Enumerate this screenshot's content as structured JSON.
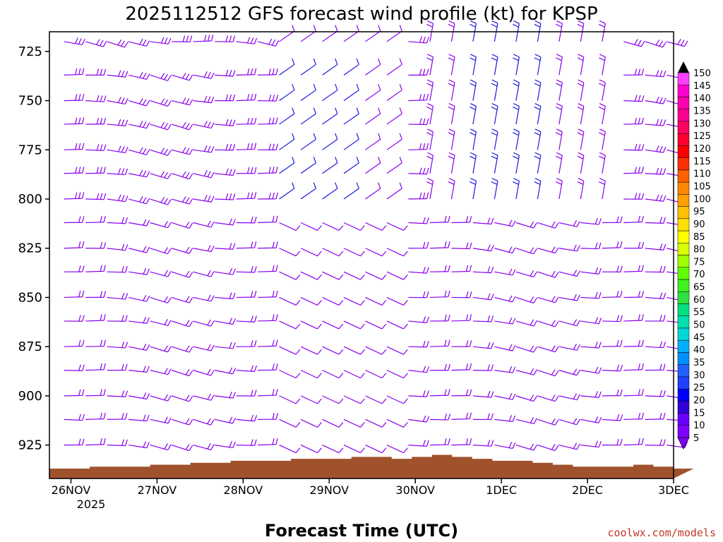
{
  "chart_data": {
    "type": "wind_profile",
    "title": "2025112512 GFS forecast wind profile (kt) for KPSP",
    "xlabel": "Forecast Time (UTC)",
    "credit": "coolwx.com/models",
    "y_axis": {
      "ticks": [
        "725",
        "750",
        "775",
        "800",
        "825",
        "850",
        "875",
        "900",
        "925"
      ],
      "tick_values": [
        725,
        750,
        775,
        800,
        825,
        850,
        875,
        900,
        925
      ],
      "range": [
        715,
        942
      ]
    },
    "x_axis": {
      "ticks": [
        "26NOV",
        "27NOV",
        "28NOV",
        "29NOV",
        "30NOV",
        "1DEC",
        "2DEC",
        "3DEC"
      ],
      "tick_days": [
        1,
        2,
        3,
        4,
        5,
        6,
        7,
        8
      ],
      "year_label": "2025",
      "range_days": [
        0.75,
        8.0
      ]
    },
    "levels_hpa": [
      720,
      737,
      750,
      762,
      775,
      787,
      800,
      812,
      825,
      837,
      850,
      862,
      875,
      887,
      900,
      912,
      925
    ],
    "surface_pressure_hpa": [
      937,
      937,
      936,
      936,
      936,
      935,
      935,
      934,
      934,
      933,
      933,
      933,
      932,
      932,
      932,
      931,
      931,
      932,
      931,
      930,
      931,
      932,
      933,
      933,
      934,
      935,
      936,
      936,
      936,
      935,
      936,
      937
    ],
    "colorbar": {
      "labels": [
        "5",
        "10",
        "15",
        "20",
        "25",
        "30",
        "35",
        "40",
        "45",
        "50",
        "55",
        "60",
        "65",
        "70",
        "75",
        "80",
        "85",
        "90",
        "95",
        "100",
        "105",
        "110",
        "115",
        "120",
        "125",
        "130",
        "135",
        "140",
        "145",
        "150"
      ],
      "colors": [
        "#8000ff",
        "#6a00ff",
        "#3000d8",
        "#0000ff",
        "#2040ff",
        "#2060ff",
        "#0090ff",
        "#00b0ff",
        "#00d8d8",
        "#00e0b0",
        "#00e080",
        "#30e040",
        "#40f020",
        "#60ff00",
        "#a0ff00",
        "#d8ff00",
        "#ffff00",
        "#ffe000",
        "#ffc000",
        "#ffa000",
        "#ff8800",
        "#ff6000",
        "#ff3000",
        "#ff0000",
        "#ff0030",
        "#ff0060",
        "#ff0090",
        "#ff00b0",
        "#ff00d0",
        "#ff40ff"
      ]
    },
    "colors": {
      "terrain": "#a0522d",
      "barb_default": "#8800ee",
      "barb_strong": "#1a1adc"
    }
  }
}
